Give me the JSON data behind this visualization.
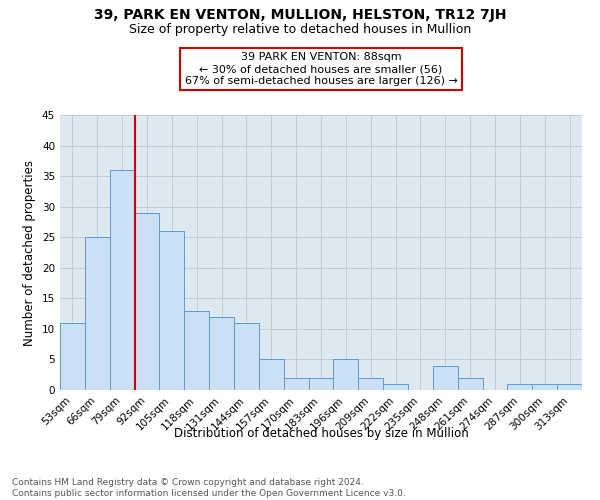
{
  "title": "39, PARK EN VENTON, MULLION, HELSTON, TR12 7JH",
  "subtitle": "Size of property relative to detached houses in Mullion",
  "xlabel": "Distribution of detached houses by size in Mullion",
  "ylabel": "Number of detached properties",
  "categories": [
    "53sqm",
    "66sqm",
    "79sqm",
    "92sqm",
    "105sqm",
    "118sqm",
    "131sqm",
    "144sqm",
    "157sqm",
    "170sqm",
    "183sqm",
    "196sqm",
    "209sqm",
    "222sqm",
    "235sqm",
    "248sqm",
    "261sqm",
    "274sqm",
    "287sqm",
    "300sqm",
    "313sqm"
  ],
  "values": [
    11,
    25,
    36,
    29,
    26,
    13,
    12,
    11,
    5,
    2,
    2,
    5,
    2,
    1,
    0,
    4,
    2,
    0,
    1,
    1,
    1
  ],
  "bar_color": "#cce0f5",
  "bar_edge_color": "#5b9bd5",
  "property_line_x": 2.5,
  "property_line_color": "#cc0000",
  "annotation_text": "39 PARK EN VENTON: 88sqm\n← 30% of detached houses are smaller (56)\n67% of semi-detached houses are larger (126) →",
  "annotation_box_color": "#ffffff",
  "annotation_box_edge": "#cc0000",
  "ylim": [
    0,
    45
  ],
  "yticks": [
    0,
    5,
    10,
    15,
    20,
    25,
    30,
    35,
    40,
    45
  ],
  "grid_color": "#b8cfe0",
  "background_color": "#dde8f0",
  "footnote": "Contains HM Land Registry data © Crown copyright and database right 2024.\nContains public sector information licensed under the Open Government Licence v3.0.",
  "title_fontsize": 10,
  "subtitle_fontsize": 9,
  "xlabel_fontsize": 8.5,
  "ylabel_fontsize": 8.5,
  "tick_fontsize": 7.5,
  "annotation_fontsize": 8,
  "footnote_fontsize": 6.5
}
